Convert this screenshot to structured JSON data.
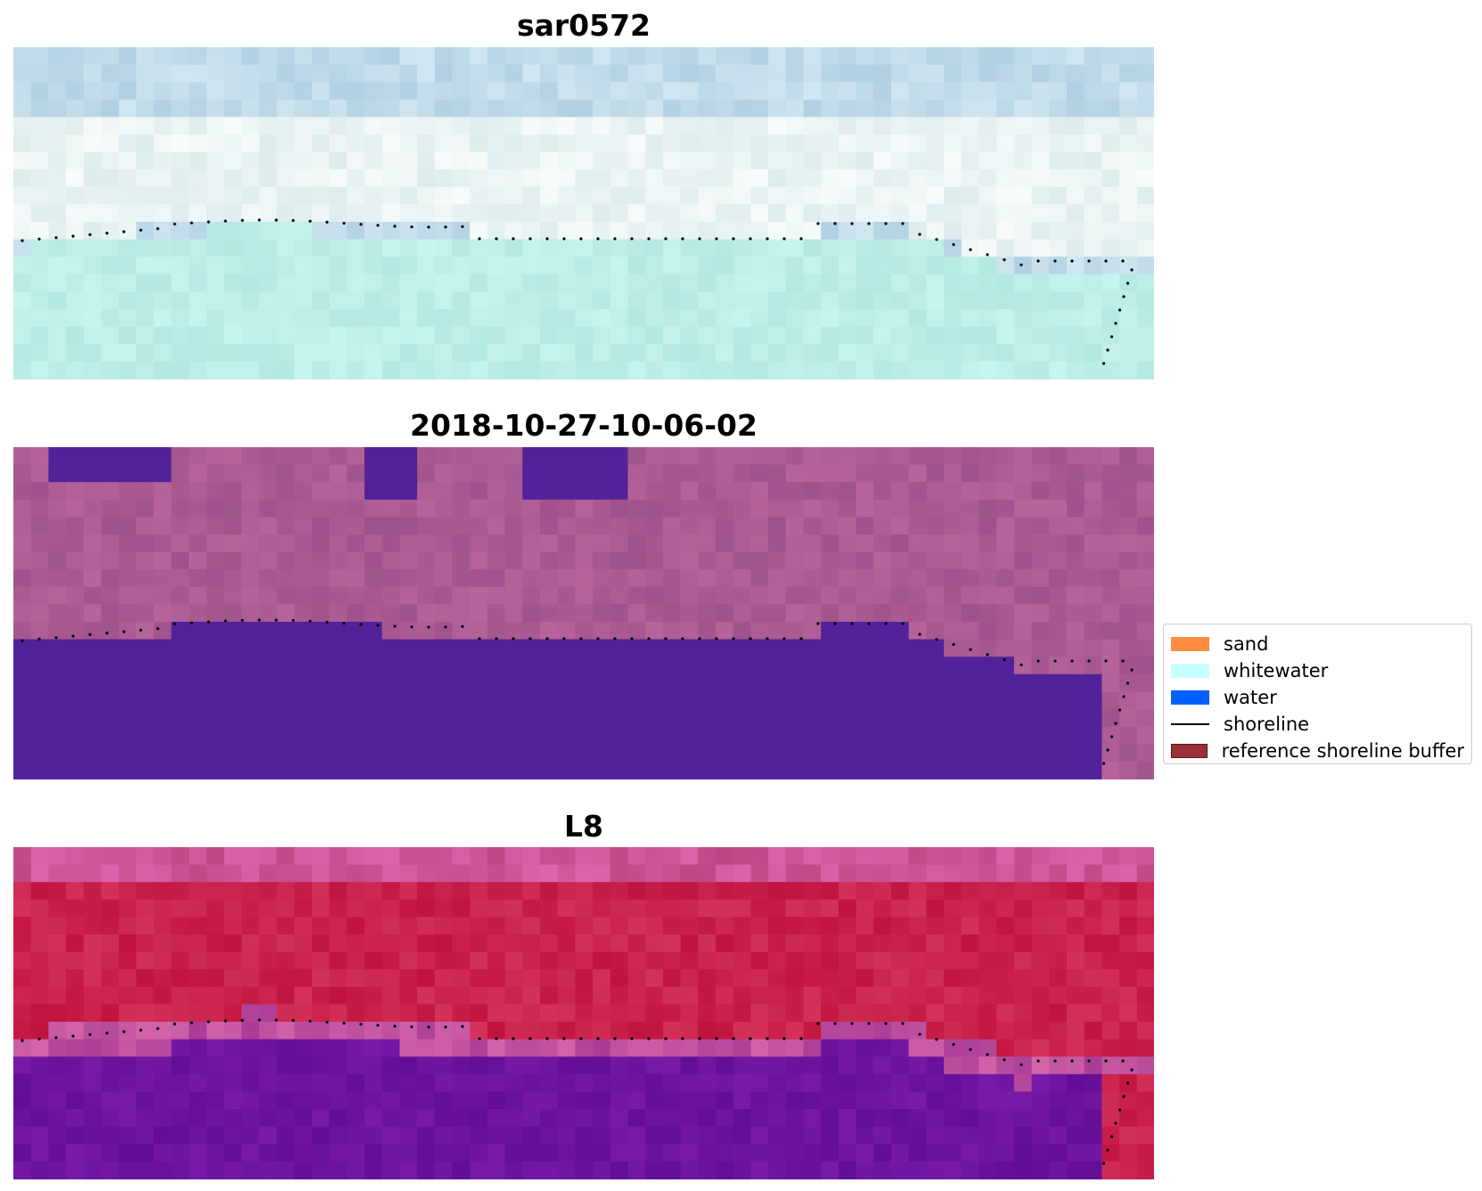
{
  "panels": [
    {
      "title": "sar0572",
      "style": "rgb"
    },
    {
      "title": "2018-10-27-10-06-02",
      "style": "classified"
    },
    {
      "title": "L8",
      "style": "index"
    }
  ],
  "legend": {
    "items": [
      {
        "label": "sand",
        "color": "#ff8c40",
        "kind": "patch"
      },
      {
        "label": "whitewater",
        "color": "#c8ffff",
        "kind": "patch"
      },
      {
        "label": "water",
        "color": "#0060ff",
        "kind": "patch"
      },
      {
        "label": "shoreline",
        "color": "#000000",
        "kind": "line"
      },
      {
        "label": "reference shoreline buffer",
        "color": "#9b3038",
        "kind": "patch"
      }
    ]
  },
  "colors": {
    "water_class": "#52229a",
    "land_class": "#a8598e",
    "sand_index": "#c41848",
    "water_index": "#650f98",
    "rgb_sky": "#b8d8e6",
    "rgb_sea": "#b6ece6"
  }
}
